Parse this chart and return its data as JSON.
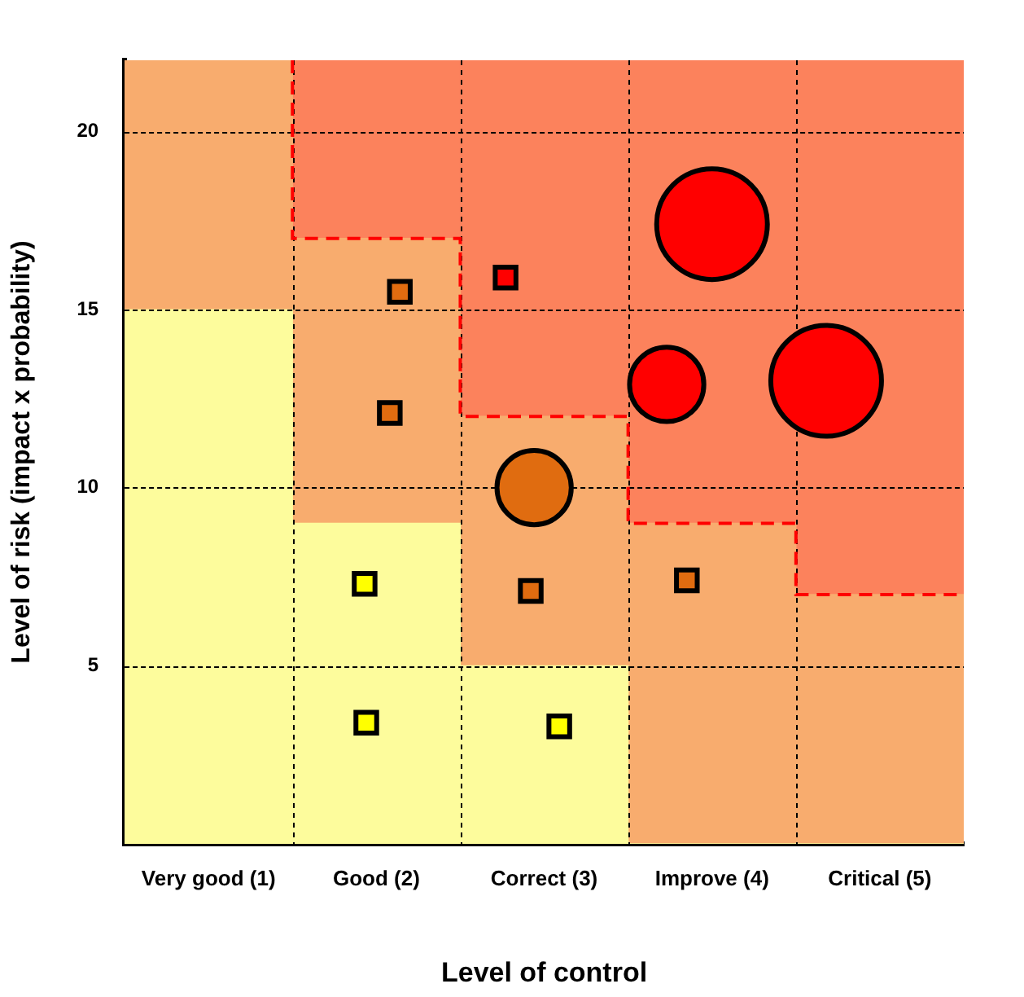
{
  "chart_data": {
    "type": "scatter",
    "xlabel": "Level of control",
    "ylabel": "Level of risk (impact x probability)",
    "xlim": [
      0.5,
      5.5
    ],
    "xticks": [
      {
        "value": 1,
        "label": "Very good (1)"
      },
      {
        "value": 2,
        "label": "Good (2)"
      },
      {
        "value": 3,
        "label": "Correct (3)"
      },
      {
        "value": 4,
        "label": "Improve (4)"
      },
      {
        "value": 5,
        "label": "Critical (5)"
      }
    ],
    "ylim": [
      0,
      22
    ],
    "yticks": [
      5,
      10,
      15,
      20
    ],
    "grid": "y",
    "legend": false,
    "stacked": true,
    "ref_lines": [
      {
        "axis": "x",
        "value": 1.5,
        "color": "#000000",
        "line_style": "dotted"
      },
      {
        "axis": "x",
        "value": 2.5,
        "color": "#000000",
        "line_style": "dotted"
      },
      {
        "axis": "x",
        "value": 3.5,
        "color": "#000000",
        "line_style": "dotted"
      },
      {
        "axis": "x",
        "value": 4.5,
        "color": "#000000",
        "line_style": "dotted"
      }
    ],
    "series": [
      {
        "type": "bar",
        "color": "#fdfc9c",
        "x": [
          1,
          2,
          3,
          4,
          5
        ],
        "values": [
          15,
          9,
          5,
          0,
          0
        ]
      },
      {
        "type": "bar",
        "color": "#f8ac6e",
        "x": [
          1,
          2,
          3,
          4,
          5
        ],
        "values": [
          7,
          8,
          7,
          9,
          7
        ]
      },
      {
        "type": "bar",
        "color": "#fc825c",
        "x": [
          1,
          2,
          3,
          4,
          5
        ],
        "values": [
          0,
          5,
          10,
          13,
          15
        ]
      },
      {
        "type": "step",
        "color": "#ff0000",
        "line_style": "dashed",
        "marker": "none",
        "x": [
          1.5,
          2.5,
          3.5,
          4.5,
          5.5
        ],
        "values": [
          22,
          17,
          12,
          9,
          7
        ]
      },
      {
        "marker": "square",
        "color": "#e06c10",
        "x": [
          2.14,
          2.08,
          2.92,
          3.85
        ],
        "values": [
          15.5,
          12.1,
          7.1,
          7.4
        ]
      },
      {
        "marker": "square",
        "color": "#ff0000",
        "x": [
          2.77
        ],
        "values": [
          15.9
        ]
      },
      {
        "marker": "square",
        "color": "#ffff00",
        "x": [
          1.93,
          1.94,
          3.09
        ],
        "values": [
          7.3,
          3.4,
          3.3
        ]
      },
      {
        "type": "bubble",
        "color": "#e06c10",
        "x": [
          2.94
        ],
        "values": [
          10.0
        ],
        "sizes": [
          0.45
        ]
      },
      {
        "type": "bubble",
        "color": "#ff0000",
        "x": [
          4.0,
          3.73,
          4.68
        ],
        "values": [
          17.4,
          12.9,
          13.0
        ],
        "sizes": [
          1,
          0.45,
          1
        ]
      }
    ]
  }
}
